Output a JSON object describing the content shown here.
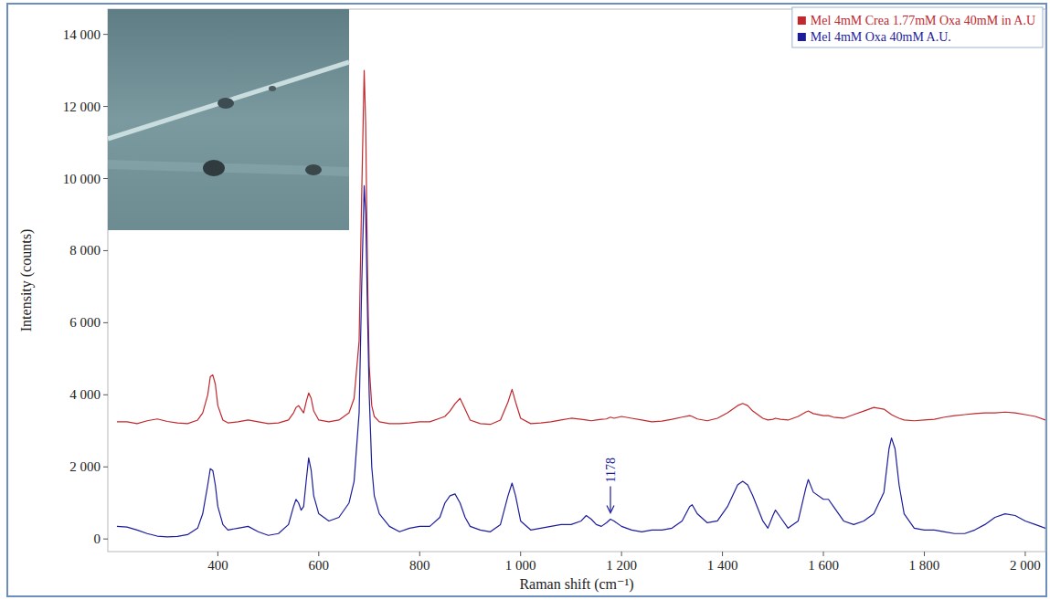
{
  "chart_data": {
    "type": "line",
    "x_label": "Raman shift (cm⁻¹)",
    "y_label": "Intensity (counts)",
    "x": [
      200,
      220,
      240,
      260,
      280,
      300,
      320,
      340,
      360,
      370,
      380,
      385,
      390,
      395,
      400,
      410,
      420,
      440,
      460,
      480,
      500,
      520,
      540,
      550,
      555,
      560,
      565,
      570,
      575,
      580,
      585,
      590,
      600,
      620,
      640,
      660,
      670,
      680,
      685,
      690,
      693,
      697,
      700,
      705,
      710,
      720,
      740,
      760,
      780,
      800,
      820,
      840,
      850,
      860,
      870,
      880,
      890,
      900,
      920,
      940,
      960,
      975,
      983,
      990,
      1000,
      1020,
      1040,
      1060,
      1080,
      1100,
      1120,
      1130,
      1140,
      1150,
      1160,
      1170,
      1178,
      1185,
      1200,
      1220,
      1240,
      1260,
      1280,
      1300,
      1320,
      1335,
      1340,
      1350,
      1370,
      1390,
      1410,
      1430,
      1440,
      1450,
      1460,
      1480,
      1490,
      1500,
      1505,
      1515,
      1530,
      1550,
      1565,
      1570,
      1580,
      1600,
      1610,
      1620,
      1640,
      1660,
      1680,
      1700,
      1720,
      1730,
      1735,
      1742,
      1750,
      1760,
      1780,
      1800,
      1820,
      1840,
      1860,
      1880,
      1900,
      1920,
      1940,
      1960,
      1980,
      2000,
      2020,
      2040
    ],
    "series": [
      {
        "name": "Mel 4mM Crea 1.77mM Oxa 40mM in A.U",
        "color": "#c0282d",
        "values": [
          3250,
          3250,
          3200,
          3280,
          3330,
          3260,
          3220,
          3200,
          3300,
          3500,
          4000,
          4500,
          4550,
          4300,
          3700,
          3300,
          3220,
          3250,
          3300,
          3250,
          3200,
          3220,
          3300,
          3500,
          3650,
          3700,
          3600,
          3500,
          3800,
          4050,
          3900,
          3550,
          3300,
          3250,
          3300,
          3500,
          3900,
          5500,
          9500,
          13000,
          11500,
          7000,
          4800,
          3700,
          3400,
          3250,
          3200,
          3200,
          3220,
          3250,
          3250,
          3350,
          3400,
          3550,
          3750,
          3900,
          3600,
          3300,
          3200,
          3180,
          3300,
          3800,
          4150,
          3800,
          3350,
          3200,
          3220,
          3250,
          3300,
          3350,
          3320,
          3300,
          3280,
          3300,
          3320,
          3330,
          3380,
          3350,
          3400,
          3350,
          3300,
          3250,
          3270,
          3320,
          3380,
          3420,
          3400,
          3330,
          3280,
          3350,
          3500,
          3700,
          3760,
          3700,
          3550,
          3350,
          3300,
          3320,
          3350,
          3320,
          3300,
          3400,
          3520,
          3550,
          3480,
          3420,
          3420,
          3380,
          3350,
          3450,
          3550,
          3650,
          3600,
          3500,
          3450,
          3400,
          3350,
          3300,
          3280,
          3300,
          3320,
          3380,
          3420,
          3450,
          3480,
          3500,
          3500,
          3520,
          3500,
          3450,
          3400,
          3300
        ]
      },
      {
        "name": "Mel 4mM Oxa 40mM A.U.",
        "color": "#1c1c9c",
        "values": [
          350,
          330,
          250,
          150,
          80,
          60,
          70,
          120,
          300,
          700,
          1500,
          1950,
          1900,
          1500,
          900,
          400,
          250,
          300,
          350,
          200,
          100,
          150,
          400,
          900,
          1100,
          1000,
          800,
          900,
          1600,
          2250,
          1900,
          1200,
          700,
          500,
          600,
          1000,
          1600,
          3500,
          7000,
          9800,
          9000,
          6000,
          4000,
          2000,
          1200,
          700,
          350,
          200,
          300,
          350,
          350,
          600,
          1000,
          1200,
          1250,
          1000,
          600,
          350,
          250,
          200,
          400,
          1200,
          1550,
          1200,
          500,
          250,
          300,
          350,
          400,
          400,
          500,
          650,
          550,
          400,
          350,
          450,
          550,
          500,
          350,
          250,
          200,
          250,
          250,
          300,
          500,
          900,
          950,
          700,
          450,
          500,
          900,
          1500,
          1600,
          1500,
          1200,
          500,
          300,
          650,
          800,
          600,
          300,
          500,
          1400,
          1650,
          1300,
          1100,
          1100,
          900,
          500,
          400,
          500,
          700,
          1300,
          2500,
          2800,
          2500,
          1500,
          700,
          300,
          250,
          250,
          200,
          150,
          150,
          250,
          400,
          600,
          700,
          650,
          500,
          400,
          300
        ]
      }
    ],
    "xlim": [
      182,
      2040
    ],
    "ylim": [
      -350,
      14700
    ],
    "xticks": [
      400,
      600,
      800,
      {
        "value": 1000,
        "label": "1 000"
      },
      {
        "value": 1200,
        "label": "1 200"
      },
      {
        "value": 1400,
        "label": "1 400"
      },
      {
        "value": 1600,
        "label": "1 600"
      },
      {
        "value": 1800,
        "label": "1 800"
      },
      {
        "value": 2000,
        "label": "2 000"
      }
    ],
    "yticks": [
      0,
      {
        "value": 2000,
        "label": "2 000"
      },
      {
        "value": 4000,
        "label": "4 000"
      },
      {
        "value": 6000,
        "label": "6 000"
      },
      {
        "value": 8000,
        "label": "8 000"
      },
      {
        "value": 10000,
        "label": "10 000"
      },
      {
        "value": 12000,
        "label": "12 000"
      },
      {
        "value": 14000,
        "label": "14 000"
      }
    ],
    "annotations": [
      {
        "text": "1178",
        "x": 1178,
        "y": 700
      }
    ],
    "legend": "upper right",
    "grid": false
  }
}
